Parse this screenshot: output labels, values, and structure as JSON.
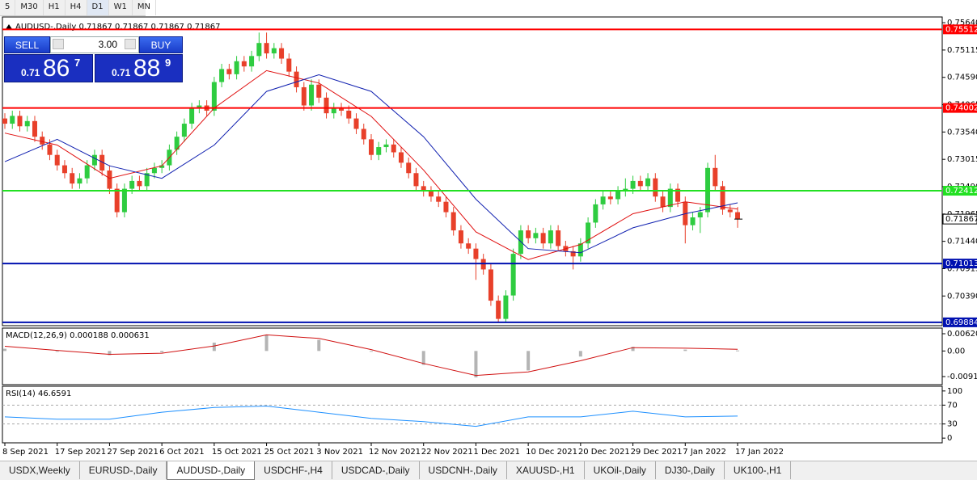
{
  "toolbar": {
    "timeframes": [
      "5",
      "M30",
      "H1",
      "H4",
      "D1",
      "W1",
      "MN"
    ],
    "active": 4
  },
  "trade_panel": {
    "sell": "SELL",
    "buy": "BUY",
    "volume": "3.00",
    "bid": {
      "big": "0.71",
      "main": "86",
      "small": "7"
    },
    "ask": {
      "big": "0.71",
      "main": "88",
      "small": "9"
    }
  },
  "tabs": {
    "items": [
      "USDX,Weekly",
      "EURUSD-,Daily",
      "AUDUSD-,Daily",
      "USDCHF-,H4",
      "USDCAD-,Daily",
      "USDCNH-,Daily",
      "XAUUSD-,H1",
      "UKOil-,Daily",
      "DJ30-,Daily",
      "UK100-,H1"
    ],
    "active": 2
  },
  "chart_data": [
    {
      "type": "candlestick",
      "title": "AUDUSD-,Daily 0.71867 0.71867 0.71867 0.71867",
      "categories": [
        "8 Sep 2021",
        null,
        null,
        null,
        null,
        null,
        null,
        "17 Sep 2021",
        null,
        null,
        null,
        null,
        null,
        null,
        "27 Sep 2021",
        null,
        null,
        null,
        null,
        null,
        null,
        "6 Oct 2021",
        null,
        null,
        null,
        null,
        null,
        null,
        "15 Oct 2021",
        null,
        null,
        null,
        null,
        null,
        null,
        "25 Oct 2021",
        null,
        null,
        null,
        null,
        null,
        null,
        "3 Nov 2021",
        null,
        null,
        null,
        null,
        null,
        null,
        "12 Nov 2021",
        null,
        null,
        null,
        null,
        null,
        null,
        "22 Nov 2021",
        null,
        null,
        null,
        null,
        null,
        null,
        "1 Dec 2021",
        null,
        null,
        null,
        null,
        null,
        null,
        "10 Dec 2021",
        null,
        null,
        null,
        null,
        null,
        null,
        "20 Dec 2021",
        null,
        null,
        null,
        null,
        null,
        null,
        "29 Dec 2021",
        null,
        null,
        null,
        null,
        null,
        null,
        "7 Jan 2022",
        null,
        null,
        null,
        null,
        null,
        null,
        "17 Jan 2022"
      ],
      "open": [
        0.738,
        0.737,
        0.7385,
        0.7365,
        0.7375,
        0.7345,
        0.733,
        0.731,
        0.729,
        0.7275,
        0.7255,
        0.7265,
        0.729,
        0.731,
        0.728,
        0.7245,
        0.72,
        0.7245,
        0.726,
        0.725,
        0.7275,
        0.7285,
        0.729,
        0.732,
        0.7345,
        0.737,
        0.74,
        0.7405,
        0.7395,
        0.745,
        0.7475,
        0.7465,
        0.749,
        0.748,
        0.75,
        0.7525,
        0.7505,
        0.7515,
        0.7495,
        0.747,
        0.744,
        0.7405,
        0.7445,
        0.742,
        0.739,
        0.74,
        0.7395,
        0.738,
        0.736,
        0.734,
        0.731,
        0.7325,
        0.733,
        0.7315,
        0.7295,
        0.7275,
        0.725,
        0.724,
        0.723,
        0.722,
        0.72,
        0.7165,
        0.714,
        0.713,
        0.711,
        0.709,
        0.703,
        0.6995,
        0.704,
        0.712,
        0.7165,
        0.715,
        0.716,
        0.714,
        0.7165,
        0.7135,
        0.7125,
        0.7115,
        0.714,
        0.718,
        0.7215,
        0.723,
        0.7225,
        0.724,
        0.7245,
        0.726,
        0.725,
        0.7265,
        0.723,
        0.721,
        0.7245,
        0.722,
        0.7175,
        0.719,
        0.72,
        0.7285,
        0.725,
        0.7205,
        0.72
      ],
      "high": [
        0.739,
        0.7395,
        0.7395,
        0.7385,
        0.7385,
        0.7355,
        0.734,
        0.732,
        0.73,
        0.7285,
        0.7275,
        0.73,
        0.732,
        0.732,
        0.729,
        0.7255,
        0.7255,
        0.727,
        0.727,
        0.7285,
        0.7295,
        0.73,
        0.733,
        0.7355,
        0.738,
        0.741,
        0.7415,
        0.7415,
        0.746,
        0.7485,
        0.7485,
        0.75,
        0.75,
        0.751,
        0.7545,
        0.7545,
        0.7525,
        0.7525,
        0.7505,
        0.748,
        0.745,
        0.7455,
        0.7455,
        0.743,
        0.741,
        0.741,
        0.7405,
        0.739,
        0.737,
        0.735,
        0.7335,
        0.734,
        0.734,
        0.7325,
        0.7305,
        0.7285,
        0.726,
        0.725,
        0.724,
        0.723,
        0.721,
        0.7175,
        0.715,
        0.714,
        0.712,
        0.71,
        0.704,
        0.705,
        0.713,
        0.7175,
        0.7175,
        0.717,
        0.717,
        0.7175,
        0.7175,
        0.7145,
        0.7135,
        0.715,
        0.719,
        0.7225,
        0.724,
        0.724,
        0.725,
        0.7265,
        0.727,
        0.727,
        0.7275,
        0.7275,
        0.724,
        0.7255,
        0.7255,
        0.723,
        0.72,
        0.721,
        0.7295,
        0.731,
        0.726,
        0.7215,
        0.721
      ],
      "low": [
        0.736,
        0.736,
        0.7355,
        0.7355,
        0.7335,
        0.732,
        0.73,
        0.728,
        0.7265,
        0.7245,
        0.7245,
        0.7255,
        0.728,
        0.727,
        0.7235,
        0.719,
        0.719,
        0.7235,
        0.724,
        0.724,
        0.7265,
        0.7275,
        0.728,
        0.731,
        0.7335,
        0.736,
        0.739,
        0.7385,
        0.7385,
        0.744,
        0.7455,
        0.7455,
        0.747,
        0.747,
        0.749,
        0.7495,
        0.7495,
        0.7485,
        0.746,
        0.743,
        0.7395,
        0.7395,
        0.741,
        0.738,
        0.738,
        0.7385,
        0.737,
        0.735,
        0.733,
        0.73,
        0.73,
        0.7315,
        0.7305,
        0.7285,
        0.7265,
        0.724,
        0.723,
        0.722,
        0.721,
        0.719,
        0.7155,
        0.713,
        0.712,
        0.707,
        0.708,
        0.702,
        0.6988,
        0.6988,
        0.703,
        0.711,
        0.714,
        0.714,
        0.713,
        0.713,
        0.7125,
        0.7115,
        0.709,
        0.7105,
        0.713,
        0.717,
        0.7205,
        0.7215,
        0.7215,
        0.723,
        0.7235,
        0.724,
        0.724,
        0.722,
        0.72,
        0.72,
        0.721,
        0.714,
        0.7165,
        0.716,
        0.719,
        0.724,
        0.7195,
        0.719,
        0.717
      ],
      "close": [
        0.737,
        0.7385,
        0.7365,
        0.7375,
        0.7345,
        0.733,
        0.731,
        0.729,
        0.7275,
        0.7255,
        0.7265,
        0.729,
        0.731,
        0.728,
        0.7245,
        0.72,
        0.7245,
        0.726,
        0.725,
        0.7275,
        0.7285,
        0.729,
        0.732,
        0.7345,
        0.737,
        0.74,
        0.7405,
        0.7395,
        0.745,
        0.7475,
        0.7465,
        0.749,
        0.748,
        0.75,
        0.7525,
        0.7505,
        0.7515,
        0.7495,
        0.747,
        0.744,
        0.7405,
        0.7445,
        0.742,
        0.739,
        0.74,
        0.7395,
        0.738,
        0.736,
        0.734,
        0.731,
        0.7325,
        0.733,
        0.7315,
        0.7295,
        0.7275,
        0.725,
        0.724,
        0.723,
        0.722,
        0.72,
        0.7165,
        0.714,
        0.713,
        0.711,
        0.709,
        0.703,
        0.6995,
        0.704,
        0.712,
        0.7165,
        0.715,
        0.716,
        0.714,
        0.7165,
        0.7135,
        0.7125,
        0.7115,
        0.714,
        0.718,
        0.7215,
        0.723,
        0.7225,
        0.724,
        0.7245,
        0.726,
        0.725,
        0.7265,
        0.723,
        0.721,
        0.7245,
        0.722,
        0.7175,
        0.719,
        0.72,
        0.7285,
        0.725,
        0.7205,
        0.72,
        0.71867
      ],
      "up_color": "#2ecc40",
      "down_color": "#e8402a",
      "ylim": [
        0.6982,
        0.7575
      ],
      "yticks": [
        {
          "value": 0.7564,
          "label": "0.75640"
        },
        0.75115,
        {
          "value": 0.7459,
          "label": "0.74590"
        },
        0.74065,
        {
          "value": 0.7354,
          "label": "0.73540"
        },
        0.73015,
        {
          "value": 0.7249,
          "label": "0.72490"
        },
        0.71965,
        {
          "value": 0.7144,
          "label": "0.71440"
        },
        0.70915,
        {
          "value": 0.7039,
          "label": "0.70390"
        }
      ],
      "levels": [
        {
          "value": 0.75512,
          "color": "#ff0000"
        },
        {
          "value": 0.74002,
          "color": "#ff0000"
        },
        {
          "value": 0.72412,
          "color": "#22e022"
        },
        {
          "value": 0.71013,
          "color": "#0010b0"
        },
        {
          "value": 0.69884,
          "color": "#0010b0"
        }
      ],
      "current_price": 0.71867,
      "series": [
        {
          "color": "#e01010",
          "x": [
            0,
            7,
            14,
            21,
            28,
            35,
            42,
            49,
            56,
            63,
            70,
            77,
            84,
            91,
            98
          ],
          "values": [
            0.7352,
            0.7329,
            0.7265,
            0.7289,
            0.74,
            0.7472,
            0.7448,
            0.7384,
            0.7281,
            0.7162,
            0.7109,
            0.7138,
            0.7197,
            0.722,
            0.7206
          ]
        },
        {
          "color": "#1020b0",
          "x": [
            0,
            7,
            14,
            21,
            28,
            35,
            42,
            49,
            56,
            63,
            70,
            77,
            84,
            91,
            98
          ],
          "values": [
            0.7297,
            0.734,
            0.7289,
            0.7265,
            0.7329,
            0.7432,
            0.7464,
            0.7432,
            0.7345,
            0.7225,
            0.713,
            0.7122,
            0.717,
            0.7197,
            0.7218
          ]
        }
      ]
    },
    {
      "type": "macd",
      "title": "MACD(12,26,9) 0.000188 0.000631",
      "x": [
        0,
        7,
        14,
        21,
        28,
        35,
        42,
        49,
        56,
        63,
        70,
        77,
        84,
        91,
        98
      ],
      "values": [
        0.0008,
        -0.0003,
        -0.0015,
        -0.0005,
        0.003,
        0.0058,
        0.004,
        0.0,
        -0.005,
        -0.0095,
        -0.007,
        -0.002,
        0.0015,
        0.0005,
        0.000188
      ],
      "color": "#b4b4b4",
      "signal": {
        "color": "#d01010",
        "values": [
          0.0017,
          0.0002,
          -0.0012,
          -0.0008,
          0.0018,
          0.0058,
          0.0045,
          0.0005,
          -0.0045,
          -0.0088,
          -0.0075,
          -0.0035,
          0.0012,
          0.001,
          0.000631
        ]
      },
      "ylim": [
        -0.0121,
        0.00823
      ],
      "yticks": [
        0.006201,
        {
          "value": 0,
          "label": "0.00"
        },
        -0.009197
      ]
    },
    {
      "type": "rsi",
      "title": "RSI(14) 46.6591",
      "x": [
        0,
        7,
        14,
        21,
        28,
        35,
        42,
        49,
        56,
        63,
        70,
        77,
        84,
        91,
        98
      ],
      "values": [
        45,
        40,
        40,
        55,
        65,
        68,
        55,
        42,
        35,
        25,
        45,
        45,
        57,
        45,
        46.6591
      ],
      "color": "#1e90ff",
      "ylim": [
        -10,
        110
      ],
      "yticks": [
        100,
        70,
        30,
        0
      ],
      "levels": [
        70,
        30
      ]
    }
  ]
}
